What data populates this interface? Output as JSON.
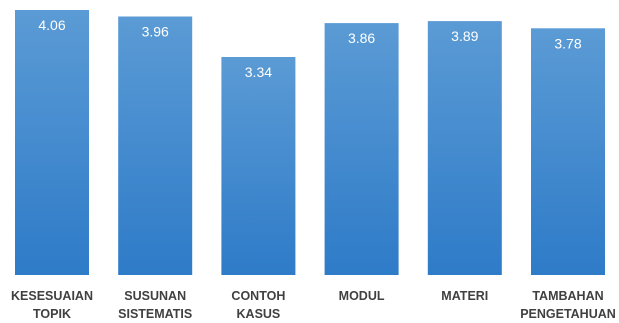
{
  "chart_data": {
    "type": "bar",
    "categories": [
      [
        "KESESUAIAN",
        "TOPIK"
      ],
      [
        "SUSUNAN",
        "SISTEMATIS"
      ],
      [
        "CONTOH",
        "KASUS"
      ],
      [
        "MODUL"
      ],
      [
        "MATERI"
      ],
      [
        "TAMBAHAN",
        "PENGETAHUAN"
      ]
    ],
    "values": [
      4.06,
      3.96,
      3.34,
      3.86,
      3.89,
      3.78
    ],
    "value_labels": [
      "4.06",
      "3.96",
      "3.34",
      "3.86",
      "3.89",
      "3.78"
    ],
    "ylim": [
      0,
      4.06
    ],
    "grid": false,
    "legend": "none",
    "colors": {
      "bar_top": "#5b9bd5",
      "bar_bottom": "#2e7bc8",
      "value_text": "#ffffff",
      "category_text": "#404040"
    }
  }
}
